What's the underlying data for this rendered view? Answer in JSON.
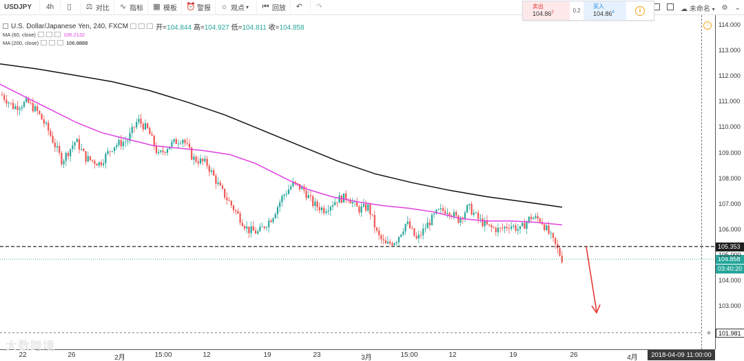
{
  "toolbar": {
    "symbol": "USDJPY",
    "interval": "4h",
    "compare": "对比",
    "indicators": "指标",
    "templates": "模板",
    "alert": "警报",
    "ideas": "观点",
    "replay": "回放",
    "chart_name": "未命名"
  },
  "quote": {
    "sell_label": "卖出",
    "sell_price": "104.86",
    "sell_sup": "2",
    "spread": "0.2",
    "buy_label": "买入",
    "buy_price": "104.86",
    "buy_sup": "4"
  },
  "legend": {
    "title": "U.S. Dollar/Japanese Yen, 240, FXCM",
    "open_label": "开=",
    "open": "104.844",
    "high_label": "高=",
    "high": "104.927",
    "low_label": "低=",
    "low": "104.811",
    "close_label": "收=",
    "close": "104.858",
    "ma60_label": "MA (60, close)",
    "ma60_value": "106.2132",
    "ma200_label": "MA (200, close)",
    "ma200_value": "106.8888"
  },
  "price_axis": {
    "ticks": [
      "114.000",
      "113.000",
      "112.000",
      "111.000",
      "110.000",
      "109.000",
      "108.000",
      "107.000",
      "106.000",
      "105.000",
      "104.000",
      "103.000"
    ],
    "tag_resistance": "105.353",
    "tag_last": "104.858",
    "tag_countdown": "03:40:20",
    "tag_target": "101.981"
  },
  "time_axis": {
    "ticks": [
      "22",
      "26",
      "2月",
      "15:00",
      "12",
      "19",
      "23",
      "3月",
      "15:00",
      "12",
      "19",
      "26",
      "4月"
    ],
    "cursor_time": "2018-04-09 11:00:00"
  },
  "watermark": "大数跨境",
  "colors": {
    "up": "#26a69a",
    "down": "#ef5350",
    "ma60": "#e040e0",
    "ma200": "#111111",
    "arrow": "#e53935"
  },
  "chart_data": {
    "type": "line",
    "title": "U.S. Dollar/Japanese Yen, 240, FXCM",
    "xlabel": "",
    "ylabel": "",
    "ylim": [
      101.5,
      114.3
    ],
    "series": [
      {
        "name": "MA (60, close)",
        "values": [
          111.7,
          111.2,
          110.7,
          110.2,
          109.8,
          109.55,
          109.3,
          109.2,
          109.1,
          108.95,
          108.6,
          108.1,
          107.6,
          107.3,
          107.1,
          106.95,
          106.85,
          106.7,
          106.45,
          106.35,
          106.35,
          106.3,
          106.2
        ]
      },
      {
        "name": "MA (200, close)",
        "values": [
          112.5,
          112.3,
          112.05,
          111.8,
          111.45,
          111.0,
          110.5,
          109.9,
          109.3,
          108.7,
          108.2,
          107.85,
          107.55,
          107.3,
          107.1,
          106.89
        ]
      }
    ],
    "horizontal_levels": [
      105.353,
      101.981
    ],
    "last_price": 104.858
  }
}
